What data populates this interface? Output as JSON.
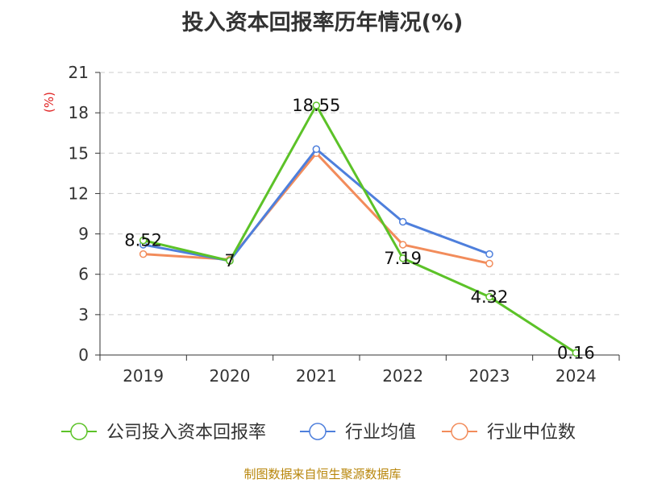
{
  "chart_data": {
    "type": "line",
    "title": "投入资本回报率历年情况(%)",
    "ylabel": "(%)",
    "xlabel": "",
    "categories": [
      "2019",
      "2020",
      "2021",
      "2022",
      "2023",
      "2024"
    ],
    "ylim": [
      0,
      21
    ],
    "yticks": [
      0,
      3,
      6,
      9,
      12,
      15,
      18,
      21
    ],
    "grid": true,
    "legend_position": "bottom",
    "series": [
      {
        "name": "公司投入资本回报率",
        "color": "#5cc228",
        "values": [
          8.52,
          7,
          18.55,
          7.19,
          4.32,
          0.16
        ],
        "labels": [
          "8.52",
          "7",
          "18.55",
          "7.19",
          "4.32",
          "0.16"
        ]
      },
      {
        "name": "行业均值",
        "color": "#4e7fdc",
        "values": [
          8.2,
          7.0,
          15.3,
          9.9,
          7.5,
          null
        ]
      },
      {
        "name": "行业中位数",
        "color": "#f28c5b",
        "values": [
          7.5,
          7.1,
          15.0,
          8.2,
          6.8,
          null
        ]
      }
    ]
  },
  "source": "制图数据来自恒生聚源数据库"
}
